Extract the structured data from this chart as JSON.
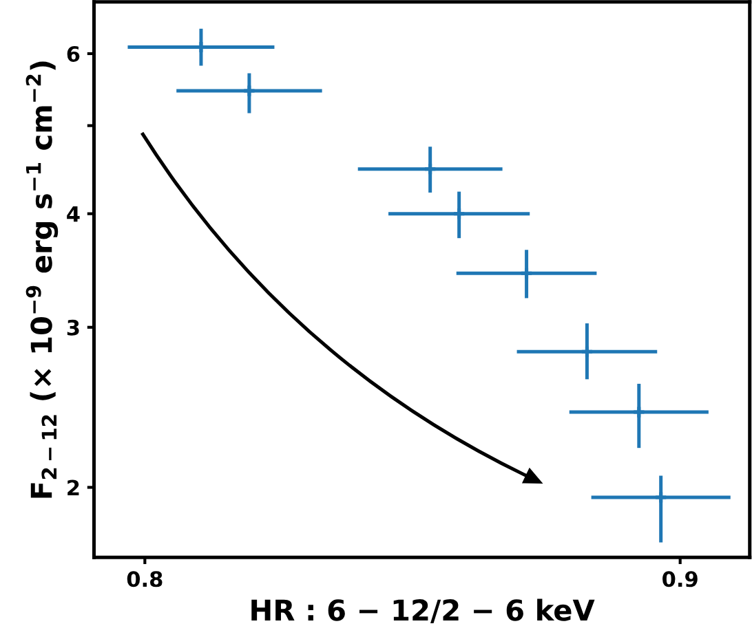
{
  "chart_data": {
    "type": "scatter",
    "xlabel": "HR : 6 − 12/2 − 6 keV",
    "ylabel": "F$_{2−12}$ (× 10$^{−9}$ erg s$^{−1}$ cm$^{−2}$)",
    "x": [
      0.8105,
      0.8195,
      0.8533,
      0.8587,
      0.8713,
      0.8826,
      0.8923,
      0.8964
    ],
    "series": [
      {
        "color": "#1f77b4",
        "values": [
          6.1,
          5.46,
          4.48,
          4.0,
          3.44,
          2.82,
          2.42,
          1.95
        ],
        "errors": [
          [
            5.82,
            6.39
          ],
          [
            5.16,
            5.71
          ],
          [
            4.22,
            4.74
          ],
          [
            3.76,
            4.23
          ],
          [
            3.23,
            3.65
          ],
          [
            2.63,
            3.03
          ],
          [
            2.21,
            2.6
          ],
          [
            1.74,
            2.06
          ]
        ],
        "xerrors": [
          0.0137,
          0.0136,
          0.0135,
          0.0132,
          0.0131,
          0.0131,
          0.013,
          0.013
        ]
      }
    ],
    "marker": "cross",
    "log": "y",
    "xlim": [
      0.7905,
      0.913
    ],
    "ylim": [
      1.675,
      6.84
    ],
    "xticks": [
      0.8,
      0.9
    ],
    "yticks": [
      2,
      3,
      4,
      {
        "value": 5,
        "label": null
      },
      6
    ],
    "grid": false,
    "legend": false
  }
}
